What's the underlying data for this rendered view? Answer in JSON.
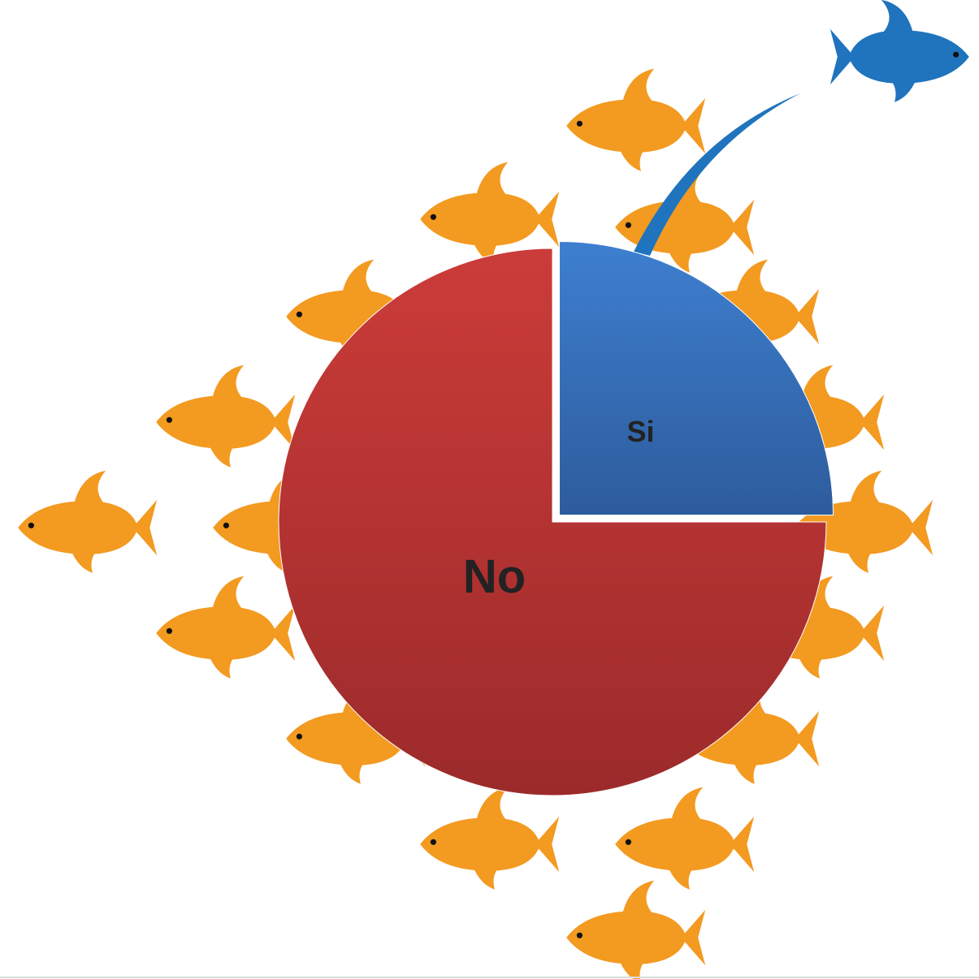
{
  "chart_data": {
    "type": "pie",
    "categories": [
      "Si",
      "No"
    ],
    "values": [
      25,
      75
    ],
    "colors": [
      "#3a78c8",
      "#c43a36"
    ]
  }
}
